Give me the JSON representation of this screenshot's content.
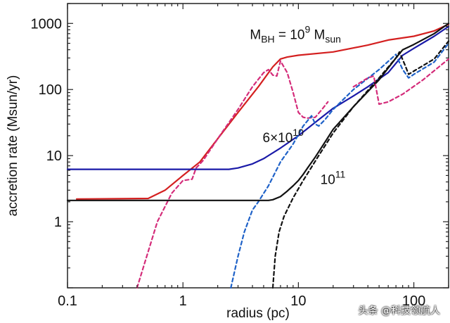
{
  "chart_data": {
    "type": "line",
    "x_scale": "log",
    "y_scale": "log",
    "xlim": [
      0.1,
      200
    ],
    "ylim": [
      0.1,
      2000
    ],
    "xlabel": "radius (pc)",
    "ylabel": "accretion rate (Msun/yr)",
    "x_ticks": [
      0.1,
      1,
      10,
      100
    ],
    "x_tick_labels": [
      "0.1",
      "1",
      "10",
      "100"
    ],
    "y_ticks": [
      1,
      10,
      100,
      1000
    ],
    "y_tick_labels": [
      "1",
      "10",
      "100",
      "1000"
    ],
    "grid": false,
    "annotations": [
      {
        "text": "M",
        "sub": "BH",
        "mid": " = 10",
        "sup": "9",
        "tail": " M",
        "tail_sub": "sun",
        "x": 3.8,
        "y": 580
      },
      {
        "text": "6×10",
        "sup": "10",
        "x": 4.9,
        "y": 16
      },
      {
        "text": "10",
        "sup": "11",
        "x": 15.5,
        "y": 3.7
      }
    ],
    "series": [
      {
        "style": "solid",
        "color": "#d42020",
        "points": [
          [
            0.12,
            2.2
          ],
          [
            0.5,
            2.25
          ],
          [
            0.7,
            3.0
          ],
          [
            1.0,
            5.0
          ],
          [
            1.4,
            8.0
          ],
          [
            2.0,
            18
          ],
          [
            3.0,
            45
          ],
          [
            4.5,
            110
          ],
          [
            6.0,
            220
          ],
          [
            7.0,
            290
          ],
          [
            8.0,
            310
          ],
          [
            10,
            330
          ],
          [
            20,
            370
          ],
          [
            40,
            470
          ],
          [
            60,
            560
          ],
          [
            100,
            640
          ],
          [
            150,
            770
          ],
          [
            200,
            970
          ]
        ]
      },
      {
        "style": "dashed",
        "color": "#d42c7a",
        "points": [
          [
            0.4,
            0.1
          ],
          [
            0.6,
            1.0
          ],
          [
            0.8,
            2.7
          ],
          [
            1.0,
            4.2
          ],
          [
            1.2,
            4.4
          ],
          [
            1.3,
            6.5
          ],
          [
            1.5,
            8.5
          ],
          [
            2.0,
            18
          ],
          [
            3.0,
            50
          ],
          [
            4.0,
            110
          ],
          [
            5.0,
            180
          ],
          [
            5.5,
            200
          ],
          [
            6.0,
            165
          ],
          [
            6.5,
            160
          ],
          [
            7.0,
            270
          ],
          [
            8.0,
            180
          ],
          [
            9.0,
            90
          ],
          [
            10,
            45
          ],
          [
            11,
            38
          ],
          [
            12,
            37
          ],
          [
            14,
            38
          ],
          [
            16,
            50
          ],
          [
            18,
            65
          ]
        ]
      },
      {
        "style": "solid",
        "color": "#1a1aa8",
        "points": [
          [
            0.1,
            6.2
          ],
          [
            2.5,
            6.2
          ],
          [
            3.0,
            6.5
          ],
          [
            4.0,
            7.5
          ],
          [
            5.0,
            9.0
          ],
          [
            7.0,
            13
          ],
          [
            10,
            20
          ],
          [
            15,
            35
          ],
          [
            20,
            52
          ],
          [
            30,
            80
          ],
          [
            40,
            110
          ],
          [
            60,
            180
          ],
          [
            80,
            330
          ],
          [
            100,
            420
          ],
          [
            150,
            640
          ],
          [
            200,
            900
          ]
        ]
      },
      {
        "style": "dashed",
        "color": "#1f62c8",
        "points": [
          [
            2.6,
            0.1
          ],
          [
            3.0,
            0.3
          ],
          [
            3.4,
            0.7
          ],
          [
            4.0,
            1.5
          ],
          [
            4.5,
            2.0
          ],
          [
            5.5,
            3.5
          ],
          [
            7.0,
            8.0
          ],
          [
            9.0,
            15
          ],
          [
            11,
            28
          ],
          [
            13,
            40
          ],
          [
            14,
            30
          ],
          [
            15,
            28
          ],
          [
            17,
            35
          ],
          [
            20,
            50
          ],
          [
            30,
            100
          ],
          [
            50,
            200
          ],
          [
            70,
            340
          ],
          [
            80,
            200
          ],
          [
            90,
            150
          ],
          [
            100,
            170
          ],
          [
            150,
            260
          ],
          [
            200,
            500
          ]
        ]
      },
      {
        "style": "solid",
        "color": "#111111",
        "points": [
          [
            0.1,
            2.1
          ],
          [
            5.5,
            2.1
          ],
          [
            6.0,
            2.15
          ],
          [
            7.0,
            2.4
          ],
          [
            8.0,
            2.9
          ],
          [
            9.0,
            3.5
          ],
          [
            10,
            4.2
          ],
          [
            11,
            5.2
          ],
          [
            12,
            6.5
          ],
          [
            14,
            9.5
          ],
          [
            17,
            16
          ],
          [
            20,
            25
          ],
          [
            30,
            55
          ],
          [
            50,
            140
          ],
          [
            70,
            300
          ],
          [
            80,
            400
          ],
          [
            100,
            480
          ],
          [
            150,
            700
          ],
          [
            200,
            1000
          ]
        ]
      },
      {
        "style": "dashed",
        "color": "#111111",
        "points": [
          [
            6.0,
            0.1
          ],
          [
            6.3,
            0.3
          ],
          [
            6.8,
            0.7
          ],
          [
            7.5,
            1.2
          ],
          [
            9.0,
            2.3
          ],
          [
            11,
            4.2
          ],
          [
            15,
            10
          ],
          [
            20,
            22
          ],
          [
            30,
            55
          ],
          [
            50,
            150
          ],
          [
            70,
            300
          ],
          [
            75,
            370
          ],
          [
            85,
            220
          ],
          [
            90,
            170
          ],
          [
            100,
            190
          ],
          [
            150,
            290
          ],
          [
            200,
            540
          ]
        ]
      },
      {
        "style": "dashed",
        "color": "#d42c7a",
        "points": [
          [
            30,
            110
          ],
          [
            40,
            150
          ],
          [
            45,
            160
          ],
          [
            50,
            60
          ],
          [
            60,
            65
          ],
          [
            80,
            85
          ],
          [
            120,
            140
          ],
          [
            200,
            290
          ]
        ]
      }
    ]
  },
  "watermark": "头条 @科技领航人"
}
